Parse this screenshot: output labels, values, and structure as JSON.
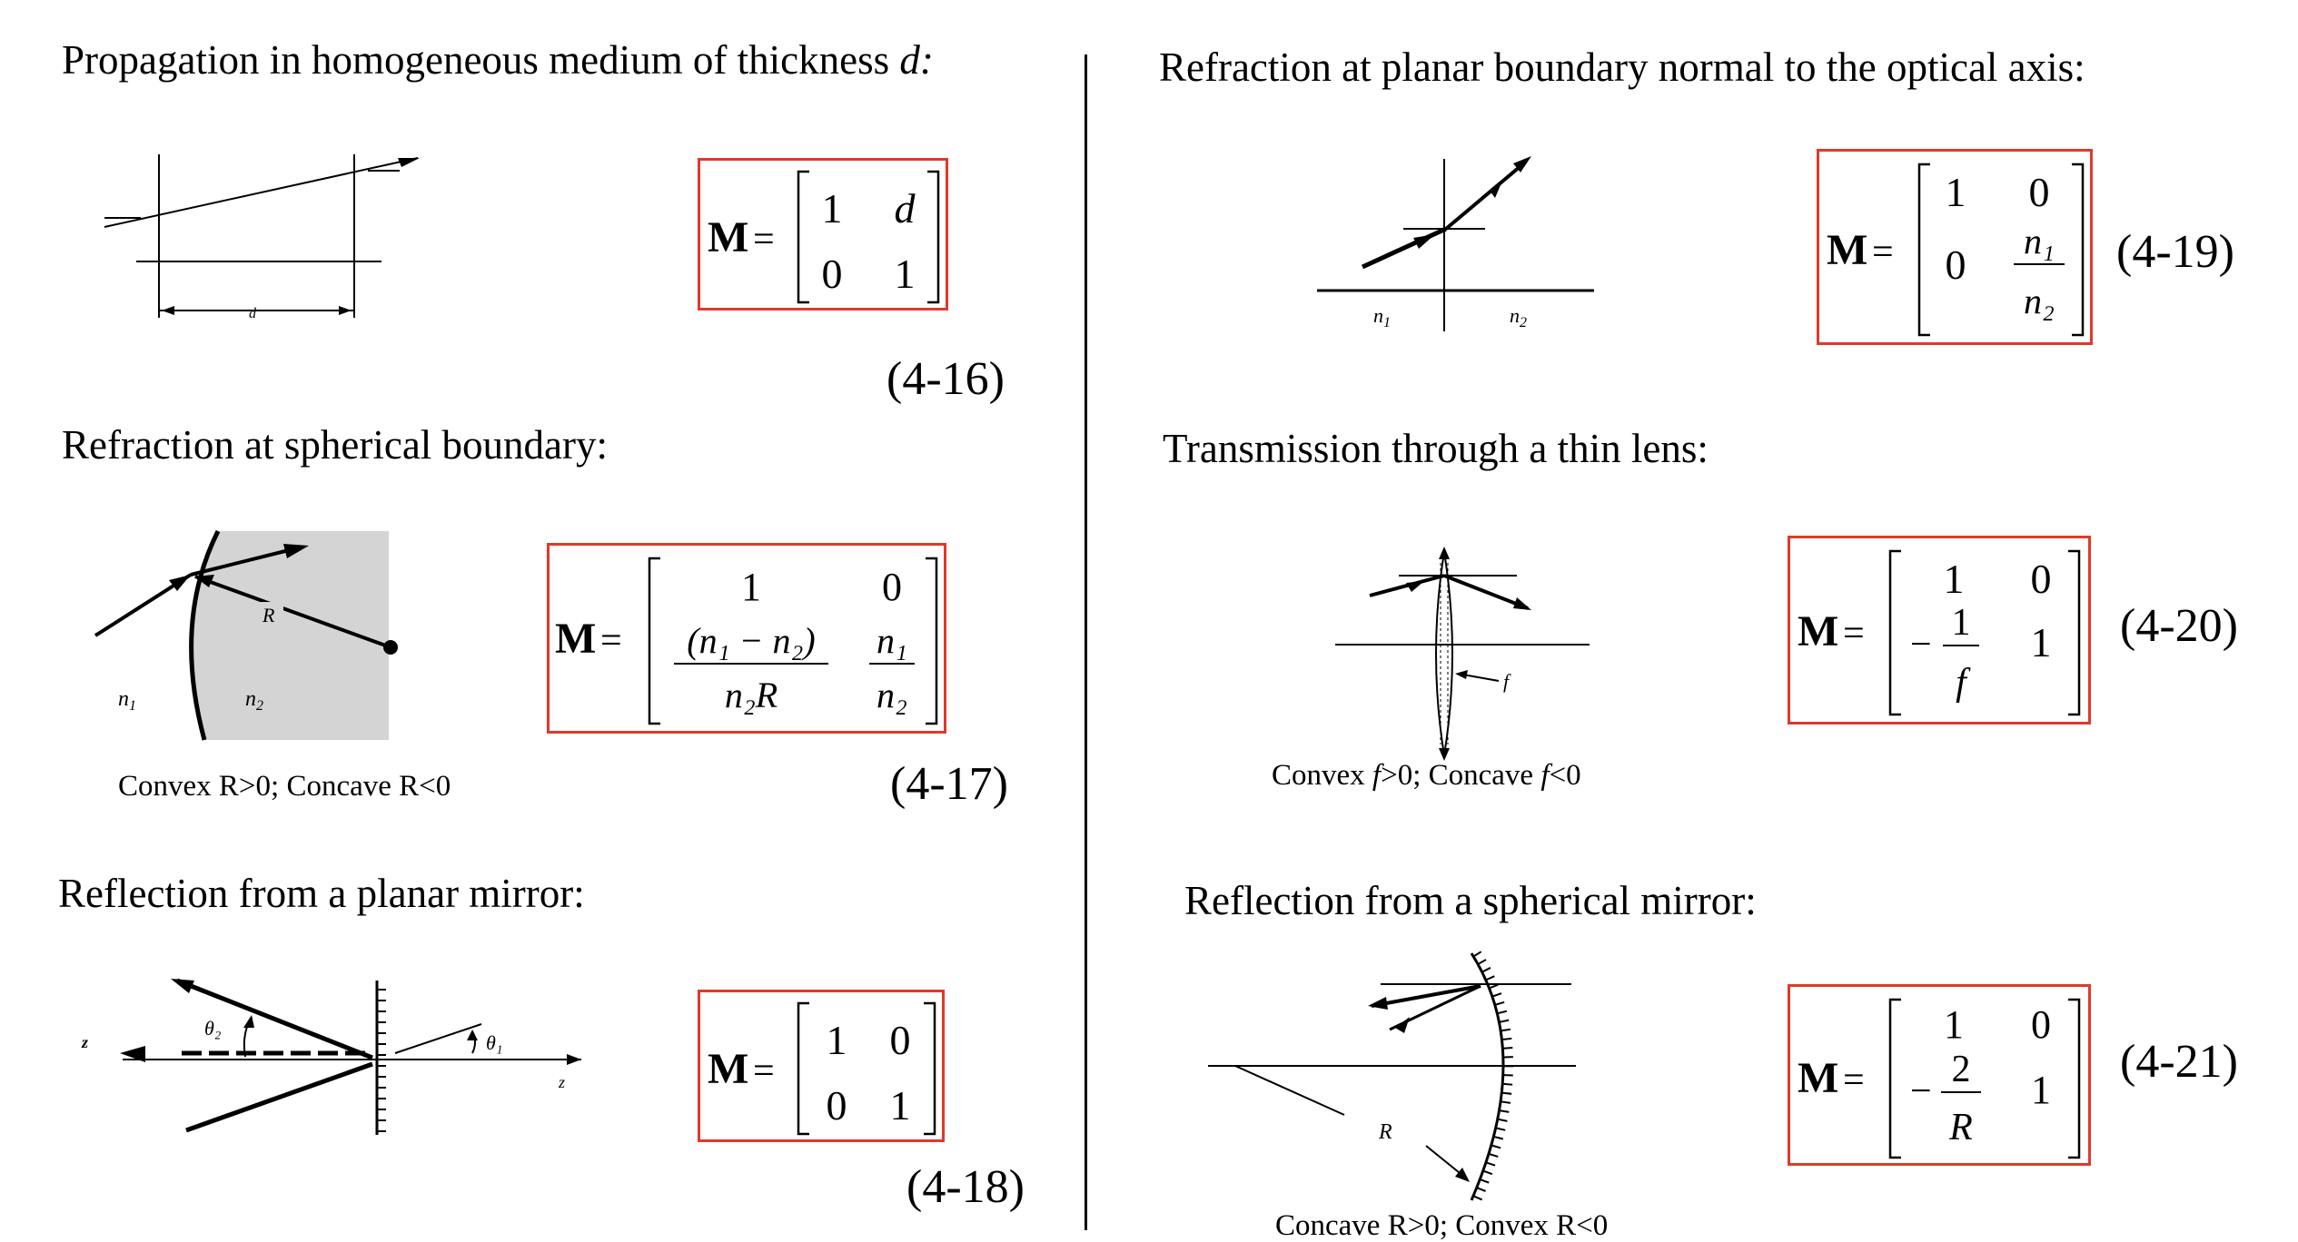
{
  "sections": {
    "s16": {
      "title": "Propagation in homogeneous medium of thickness ",
      "title_var": "d:",
      "eq": "(4-16)",
      "diagram_label": "d",
      "matrix": {
        "symbol": "M",
        "a": "1",
        "b": "d",
        "c": "0",
        "d": "1"
      }
    },
    "s17": {
      "title": "Refraction at spherical boundary:",
      "eq": "(4-17)",
      "caption": "Convex R>0; Concave R<0",
      "diagram_labels": {
        "n1": "n",
        "n1_sub": "1",
        "n2": "n",
        "n2_sub": "2",
        "R": "R"
      },
      "matrix": {
        "symbol": "M",
        "a": "1",
        "b": "0",
        "c_num": "(n₁ − n₂)",
        "c_den": "n₂R",
        "d_num": "n₁",
        "d_den": "n₂"
      }
    },
    "s18": {
      "title": "Reflection from a planar mirror:",
      "eq": "(4-18)",
      "diagram_labels": {
        "z_left": "z",
        "z_right": "z",
        "theta2": "θ₂",
        "theta1": "θ₁"
      },
      "matrix": {
        "symbol": "M",
        "a": "1",
        "b": "0",
        "c": "0",
        "d": "1"
      }
    },
    "s19": {
      "title": "Refraction at planar boundary normal to the optical axis:",
      "eq": "(4-19)",
      "diagram_labels": {
        "n1": "n",
        "n1_sub": "1",
        "n2": "n",
        "n2_sub": "2"
      },
      "matrix": {
        "symbol": "M",
        "a": "1",
        "b": "0",
        "c": "0",
        "d_num": "n₁",
        "d_den": "n₂"
      }
    },
    "s20": {
      "title": "Transmission through a thin lens:",
      "eq": "(4-20)",
      "caption_a": "Convex ",
      "caption_f1": "f",
      "caption_b": ">0; Concave ",
      "caption_f2": "f",
      "caption_c": "<0",
      "diagram_labels": {
        "f": "f"
      },
      "matrix": {
        "symbol": "M",
        "a": "1",
        "b": "0",
        "c_sign": "−",
        "c_num": "1",
        "c_den": "f",
        "d": "1"
      }
    },
    "s21": {
      "title": "Reflection from a spherical mirror:",
      "eq": "(4-21)",
      "caption": "Concave R>0; Convex R<0",
      "diagram_labels": {
        "R": "R"
      },
      "matrix": {
        "symbol": "M",
        "a": "1",
        "b": "0",
        "c_sign": "−",
        "c_num": "2",
        "c_den": "R",
        "d": "1"
      }
    }
  },
  "colors": {
    "box_border": "#e0392b",
    "ink": "#000000",
    "medium_fill": "#d4d4d4"
  }
}
